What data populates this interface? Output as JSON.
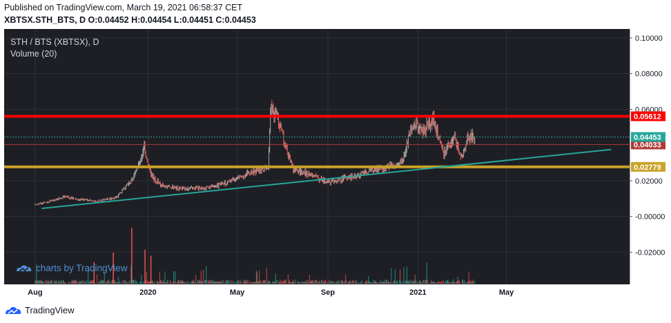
{
  "header": {
    "published": "Published on TradingView.com, March 19, 2021 06:58:37 CET",
    "ohlc": "XBTSX.STH_BTS, D  O:0.04452 H:0.04454 L:0.04451 C:0.04453"
  },
  "legend": {
    "symbol": "STH / BTS (XBTSX), D",
    "volume": "Volume (20)"
  },
  "watermark": {
    "text": "charts by TradingView"
  },
  "footer": {
    "brand": "TradingView"
  },
  "colors": {
    "background": "#1e1f24",
    "grid": "#2f3138",
    "axis_text": "#d1d4dc",
    "up": "#a7a7a7",
    "down": "#e0625d",
    "vol_up": "#26a69a",
    "vol_down": "#ef5350",
    "red_line": "#ff0000",
    "dark_red_line": "#b03a3a",
    "gold_line": "#c9a227",
    "trend_line": "#26a69a",
    "last_price_badge": "#26a69a",
    "watermark": "#4f8fd6"
  },
  "chart_data": {
    "type": "candlestick",
    "symbol": "XBTSX.STH_BTS",
    "interval": "D",
    "ylim": [
      -0.038,
      0.105
    ],
    "y_ticks": [
      {
        "value": 0.1,
        "label": "0.10000"
      },
      {
        "value": 0.08,
        "label": "0.08000"
      },
      {
        "value": 0.06,
        "label": "0.06000"
      },
      {
        "value": 0.02,
        "label": "0.02000"
      },
      {
        "value": 0.0,
        "label": "-0.00000"
      },
      {
        "value": -0.02,
        "label": "-0.02000"
      }
    ],
    "x_range": [
      "2019-06-20",
      "2021-10-15"
    ],
    "x_ticks": [
      {
        "date": "2019-08-01",
        "label": "Aug"
      },
      {
        "date": "2020-01-01",
        "label": "2020"
      },
      {
        "date": "2020-05-01",
        "label": "May"
      },
      {
        "date": "2020-09-01",
        "label": "Sep"
      },
      {
        "date": "2021-01-01",
        "label": "2021"
      },
      {
        "date": "2021-05-01",
        "label": "May"
      }
    ],
    "price_path": [
      [
        "2019-08-01",
        0.0065
      ],
      [
        "2019-08-20",
        0.0085
      ],
      [
        "2019-09-10",
        0.011
      ],
      [
        "2019-10-01",
        0.0095
      ],
      [
        "2019-10-25",
        0.0085
      ],
      [
        "2019-11-20",
        0.011
      ],
      [
        "2019-12-10",
        0.021
      ],
      [
        "2019-12-22",
        0.031
      ],
      [
        "2019-12-26",
        0.04
      ],
      [
        "2020-01-05",
        0.023
      ],
      [
        "2020-01-20",
        0.017
      ],
      [
        "2020-02-20",
        0.0155
      ],
      [
        "2020-03-20",
        0.016
      ],
      [
        "2020-04-20",
        0.019
      ],
      [
        "2020-05-20",
        0.025
      ],
      [
        "2020-06-12",
        0.027
      ],
      [
        "2020-06-15",
        0.06
      ],
      [
        "2020-06-25",
        0.056
      ],
      [
        "2020-07-05",
        0.04
      ],
      [
        "2020-07-15",
        0.027
      ],
      [
        "2020-08-10",
        0.023
      ],
      [
        "2020-09-01",
        0.019
      ],
      [
        "2020-09-20",
        0.021
      ],
      [
        "2020-10-20",
        0.024
      ],
      [
        "2020-11-20",
        0.028
      ],
      [
        "2020-12-10",
        0.03
      ],
      [
        "2020-12-25",
        0.052
      ],
      [
        "2021-01-10",
        0.048
      ],
      [
        "2021-01-22",
        0.054
      ],
      [
        "2021-02-05",
        0.036
      ],
      [
        "2021-02-20",
        0.044
      ],
      [
        "2021-03-01",
        0.032
      ],
      [
        "2021-03-10",
        0.045
      ],
      [
        "2021-03-19",
        0.04453
      ]
    ],
    "horizontal_lines": [
      {
        "value": 0.05612,
        "label": "0.05612",
        "color": "#ff0000"
      },
      {
        "value": 0.04033,
        "label": "0.04033",
        "color": "#b03a3a"
      },
      {
        "value": 0.02779,
        "label": "0.02779",
        "color": "#c9a227"
      }
    ],
    "last_price": {
      "value": 0.04453,
      "label": "0.04453"
    },
    "trend_line": [
      {
        "date": "2019-08-10",
        "value": 0.0045
      },
      {
        "date": "2021-09-20",
        "value": 0.0375
      }
    ],
    "volume_spikes": [
      {
        "date": "2019-12-10",
        "value": 0.9
      },
      {
        "date": "2019-11-15",
        "value": 0.5
      },
      {
        "date": "2019-10-20",
        "value": 0.35
      },
      {
        "date": "2020-01-05",
        "value": 0.45
      },
      {
        "date": "2019-12-28",
        "value": 0.55
      }
    ]
  }
}
